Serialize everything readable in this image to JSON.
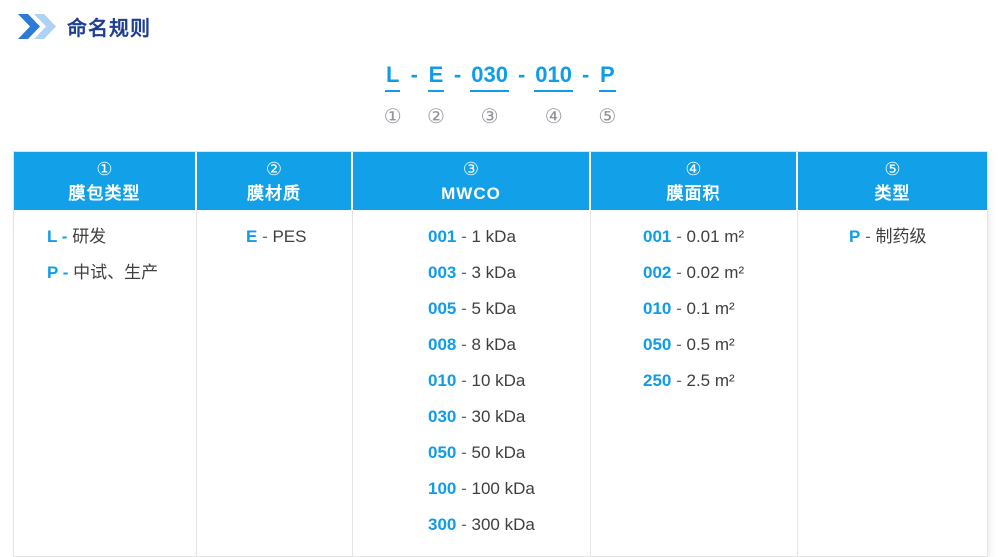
{
  "page_title": "命名规则",
  "colors": {
    "accent_blue": "#109ce8",
    "header_bg": "#12a0e8",
    "title_navy": "#1d3e92",
    "body_text": "#3f3f3f",
    "circled_num_gray": "#909399",
    "border_gray": "#e4e4e4",
    "chevron_dark": "#2b7ad6",
    "chevron_light": "#aed3f2"
  },
  "code_example": {
    "dash": "-",
    "segments": [
      {
        "code": "L",
        "num": "①"
      },
      {
        "code": "E",
        "num": "②"
      },
      {
        "code": "030",
        "num": "③"
      },
      {
        "code": "010",
        "num": "④"
      },
      {
        "code": "P",
        "num": "⑤"
      }
    ]
  },
  "table": {
    "sep": " - ",
    "columns": [
      {
        "num": "①",
        "label": "膜包类型",
        "blue_dash": true,
        "items": [
          {
            "code": "L",
            "desc": "研发"
          },
          {
            "code": "P",
            "desc": "中试、生产"
          }
        ]
      },
      {
        "num": "②",
        "label": "膜材质",
        "items": [
          {
            "code": "E",
            "desc": "PES"
          }
        ]
      },
      {
        "num": "③",
        "label": "MWCO",
        "items": [
          {
            "code": "001",
            "desc": "1 kDa"
          },
          {
            "code": "003",
            "desc": "3 kDa"
          },
          {
            "code": "005",
            "desc": "5 kDa"
          },
          {
            "code": "008",
            "desc": "8 kDa"
          },
          {
            "code": "010",
            "desc": "10 kDa"
          },
          {
            "code": "030",
            "desc": "30 kDa"
          },
          {
            "code": "050",
            "desc": "50 kDa"
          },
          {
            "code": "100",
            "desc": "100 kDa"
          },
          {
            "code": "300",
            "desc": "300 kDa"
          }
        ]
      },
      {
        "num": "④",
        "label": "膜面积",
        "items": [
          {
            "code": "001",
            "desc": "0.01 m²"
          },
          {
            "code": "002",
            "desc": "0.02 m²"
          },
          {
            "code": "010",
            "desc": "0.1 m²"
          },
          {
            "code": "050",
            "desc": "0.5 m²"
          },
          {
            "code": "250",
            "desc": "2.5 m²"
          }
        ]
      },
      {
        "num": "⑤",
        "label": "类型",
        "items": [
          {
            "code": "P",
            "desc": "制药级"
          }
        ]
      }
    ]
  }
}
